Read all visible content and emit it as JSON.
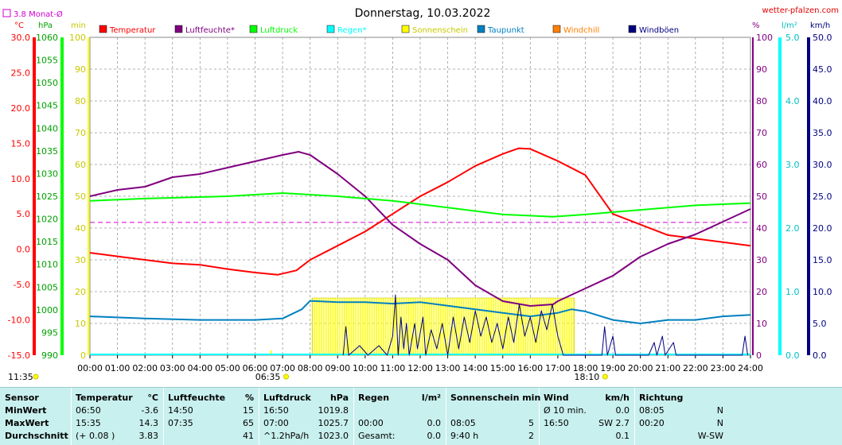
{
  "header": {
    "title": "Donnerstag, 10.03.2022",
    "site": "wetter-pfalzen.com",
    "avg_label": "3.8 Monat-Ø"
  },
  "axes": {
    "temp": {
      "unit": "°C",
      "ticks": [
        "30.0",
        "25.0",
        "20.0",
        "15.0",
        "10.0",
        "5.0",
        "0.0",
        "-5.0",
        "-10.0",
        "-15.0"
      ]
    },
    "press": {
      "unit": "hPa",
      "ticks": [
        "1060",
        "1055",
        "1050",
        "1045",
        "1040",
        "1035",
        "1030",
        "1025",
        "1020",
        "1015",
        "1010",
        "1005",
        "1000",
        "995",
        "990"
      ]
    },
    "min": {
      "unit": "min",
      "ticks": [
        "100",
        "90",
        "80",
        "70",
        "60",
        "50",
        "40",
        "30",
        "20",
        "10",
        "0"
      ]
    },
    "hum": {
      "unit": "%",
      "ticks": [
        "100",
        "90",
        "80",
        "70",
        "60",
        "50",
        "40",
        "30",
        "20",
        "10",
        "0"
      ]
    },
    "rain": {
      "unit": "l/m²",
      "ticks": [
        "5.0",
        "4.0",
        "3.0",
        "2.0",
        "1.0",
        "0.0"
      ]
    },
    "wind": {
      "unit": "km/h",
      "ticks": [
        "50.0",
        "45.0",
        "40.0",
        "35.0",
        "30.0",
        "25.0",
        "20.0",
        "15.0",
        "10.0",
        "5.0",
        "0.0"
      ]
    },
    "x": {
      "ticks": [
        "00:00",
        "01:00",
        "02:00",
        "03:00",
        "04:00",
        "05:00",
        "06:00",
        "07:00",
        "08:00",
        "09:00",
        "10:00",
        "11:00",
        "12:00",
        "13:00",
        "14:00",
        "15:00",
        "16:00",
        "17:00",
        "18:00",
        "19:00",
        "20:00",
        "21:00",
        "22:00",
        "23:00",
        "24:00"
      ]
    },
    "sun_marks": [
      {
        "t": "06:35",
        "h": 6.58
      },
      {
        "t": "18:10",
        "h": 18.17
      }
    ],
    "moon_mark": {
      "t": "11:35"
    }
  },
  "legend": [
    {
      "name": "Temperatur",
      "color": "#ff0000"
    },
    {
      "name": "Luftfeuchte*",
      "color": "#800080"
    },
    {
      "name": "Luftdruck",
      "color": "#00ff00"
    },
    {
      "name": "Regen*",
      "color": "#00ffff"
    },
    {
      "name": "Sonnenschein",
      "color": "#ffff00"
    },
    {
      "name": "Taupunkt",
      "color": "#0080c0"
    },
    {
      "name": "Windchill",
      "color": "#ff8000"
    },
    {
      "name": "Windböen",
      "color": "#000080"
    }
  ],
  "chart_data": {
    "type": "line",
    "title": "Donnerstag, 10.03.2022",
    "x_range": [
      0,
      24
    ],
    "avg_temp": 3.8,
    "series": [
      {
        "name": "Temperatur",
        "unit": "°C",
        "color": "#ff0000",
        "points": [
          [
            0,
            -0.5
          ],
          [
            1,
            -1.0
          ],
          [
            2,
            -1.5
          ],
          [
            3,
            -2.0
          ],
          [
            4,
            -2.2
          ],
          [
            5,
            -2.8
          ],
          [
            6,
            -3.3
          ],
          [
            6.83,
            -3.6
          ],
          [
            7.5,
            -3.0
          ],
          [
            8,
            -1.5
          ],
          [
            9,
            0.5
          ],
          [
            10,
            2.5
          ],
          [
            11,
            5.0
          ],
          [
            12,
            7.5
          ],
          [
            13,
            9.5
          ],
          [
            14,
            11.8
          ],
          [
            15,
            13.5
          ],
          [
            15.58,
            14.3
          ],
          [
            16,
            14.2
          ],
          [
            17,
            12.5
          ],
          [
            18,
            10.5
          ],
          [
            19,
            5.0
          ],
          [
            20,
            3.5
          ],
          [
            21,
            2.0
          ],
          [
            22,
            1.5
          ],
          [
            23,
            1.0
          ],
          [
            24,
            0.5
          ]
        ]
      },
      {
        "name": "Luftfeuchte*",
        "unit": "%",
        "color": "#800080",
        "points": [
          [
            0,
            50
          ],
          [
            1,
            52
          ],
          [
            2,
            53
          ],
          [
            3,
            56
          ],
          [
            4,
            57
          ],
          [
            5,
            59
          ],
          [
            6,
            61
          ],
          [
            7,
            63
          ],
          [
            7.58,
            64
          ],
          [
            8,
            63
          ],
          [
            9,
            57
          ],
          [
            10,
            50
          ],
          [
            11,
            41
          ],
          [
            12,
            35
          ],
          [
            13,
            30
          ],
          [
            14,
            22
          ],
          [
            15,
            17
          ],
          [
            16,
            15.5
          ],
          [
            16.83,
            16
          ],
          [
            17,
            17
          ],
          [
            18,
            21
          ],
          [
            19,
            25
          ],
          [
            20,
            31
          ],
          [
            21,
            35
          ],
          [
            22,
            38
          ],
          [
            23,
            42
          ],
          [
            24,
            46
          ]
        ]
      },
      {
        "name": "Luftdruck",
        "unit": "hPa",
        "color": "#00ff00",
        "points": [
          [
            0,
            1024
          ],
          [
            2,
            1024.5
          ],
          [
            5,
            1025
          ],
          [
            7,
            1025.7
          ],
          [
            9,
            1025
          ],
          [
            11,
            1024
          ],
          [
            13,
            1022.5
          ],
          [
            15,
            1021
          ],
          [
            16.83,
            1020.5
          ],
          [
            18,
            1021
          ],
          [
            20,
            1022
          ],
          [
            22,
            1023
          ],
          [
            24,
            1023.5
          ]
        ]
      },
      {
        "name": "Taupunkt",
        "unit": "°C",
        "color": "#0080c0",
        "points": [
          [
            0,
            -9.5
          ],
          [
            2,
            -9.8
          ],
          [
            4,
            -10.0
          ],
          [
            6,
            -10.0
          ],
          [
            7,
            -9.8
          ],
          [
            7.7,
            -8.5
          ],
          [
            8,
            -7.3
          ],
          [
            9,
            -7.5
          ],
          [
            10,
            -7.5
          ],
          [
            11,
            -7.7
          ],
          [
            12,
            -7.5
          ],
          [
            13,
            -8.0
          ],
          [
            14,
            -8.5
          ],
          [
            15,
            -9.0
          ],
          [
            16,
            -9.5
          ],
          [
            17,
            -9.0
          ],
          [
            17.5,
            -8.5
          ],
          [
            18,
            -8.8
          ],
          [
            19,
            -10.0
          ],
          [
            20,
            -10.5
          ],
          [
            21,
            -10.0
          ],
          [
            22,
            -10.0
          ],
          [
            23,
            -9.5
          ],
          [
            24,
            -9.3
          ]
        ]
      },
      {
        "name": "Windböen",
        "unit": "km/h",
        "color": "#000080",
        "points": [
          [
            9.2,
            0
          ],
          [
            9.3,
            4.5
          ],
          [
            9.4,
            0
          ],
          [
            9.8,
            1.5
          ],
          [
            10.1,
            0
          ],
          [
            10.5,
            1.5
          ],
          [
            10.8,
            0
          ],
          [
            11,
            3
          ],
          [
            11.1,
            9.5
          ],
          [
            11.2,
            0
          ],
          [
            11.3,
            6
          ],
          [
            11.4,
            1
          ],
          [
            11.5,
            5
          ],
          [
            11.6,
            0
          ],
          [
            11.8,
            5
          ],
          [
            11.9,
            1
          ],
          [
            12.1,
            6
          ],
          [
            12.2,
            0
          ],
          [
            12.4,
            4
          ],
          [
            12.6,
            1
          ],
          [
            12.8,
            5
          ],
          [
            13,
            0
          ],
          [
            13.2,
            6
          ],
          [
            13.4,
            1
          ],
          [
            13.6,
            6
          ],
          [
            13.8,
            2
          ],
          [
            14,
            7
          ],
          [
            14.2,
            3
          ],
          [
            14.4,
            6
          ],
          [
            14.6,
            2
          ],
          [
            14.8,
            5
          ],
          [
            15,
            1
          ],
          [
            15.2,
            6
          ],
          [
            15.4,
            2
          ],
          [
            15.6,
            8
          ],
          [
            15.8,
            3
          ],
          [
            16,
            6
          ],
          [
            16.2,
            2
          ],
          [
            16.4,
            7
          ],
          [
            16.6,
            4
          ],
          [
            16.8,
            8
          ],
          [
            17,
            3
          ],
          [
            17.2,
            0
          ],
          [
            18.6,
            0
          ],
          [
            18.7,
            4.5
          ],
          [
            18.8,
            0
          ],
          [
            19,
            3
          ],
          [
            19.1,
            0
          ],
          [
            20.3,
            0
          ],
          [
            20.5,
            2
          ],
          [
            20.6,
            0
          ],
          [
            20.8,
            3
          ],
          [
            20.9,
            0
          ],
          [
            21.2,
            2
          ],
          [
            21.3,
            0
          ],
          [
            23.7,
            0
          ],
          [
            23.8,
            3
          ],
          [
            23.9,
            0
          ]
        ]
      }
    ],
    "sunshine": {
      "start": 8.08,
      "end": 17.6,
      "min_per_5": 2.4
    },
    "stats": {
      "headers": [
        {
          "label": "Sensor",
          "unit": ""
        },
        {
          "label": "Temperatur",
          "unit": "°C"
        },
        {
          "label": "Luftfeuchte",
          "unit": "%"
        },
        {
          "label": "Luftdruck",
          "unit": "hPa"
        },
        {
          "label": "Regen",
          "unit": "l/m²"
        },
        {
          "label": "Sonnenschein min",
          "unit": ""
        },
        {
          "label": "Wind",
          "unit": "km/h"
        },
        {
          "label": "Richtung",
          "unit": ""
        }
      ],
      "rows": [
        {
          "label": "MinWert",
          "cells": [
            [
              "06:50",
              "-3.6"
            ],
            [
              "14:50",
              "15"
            ],
            [
              "16:50",
              "1019.8"
            ],
            [
              "",
              ""
            ],
            [
              "",
              ""
            ],
            [
              "Ø 10 min.",
              "0.0"
            ],
            [
              "08:05",
              "N"
            ]
          ]
        },
        {
          "label": "MaxWert",
          "cells": [
            [
              "15:35",
              "14.3"
            ],
            [
              "07:35",
              "65"
            ],
            [
              "07:00",
              "1025.7"
            ],
            [
              "00:00",
              "0.0"
            ],
            [
              "08:05",
              "5"
            ],
            [
              "16:50",
              "SW 2.7"
            ],
            [
              "00:20",
              "N"
            ]
          ]
        },
        {
          "label": "Durchschnitt",
          "cells": [
            [
              "(+ 0.08 )",
              "3.83"
            ],
            [
              "",
              "41"
            ],
            [
              "^1.2hPa/h",
              "1023.0"
            ],
            [
              "Gesamt:",
              "0.0"
            ],
            [
              "9:40 h",
              "2"
            ],
            [
              "",
              "0.1"
            ],
            [
              "",
              "W-SW"
            ]
          ]
        }
      ]
    }
  }
}
